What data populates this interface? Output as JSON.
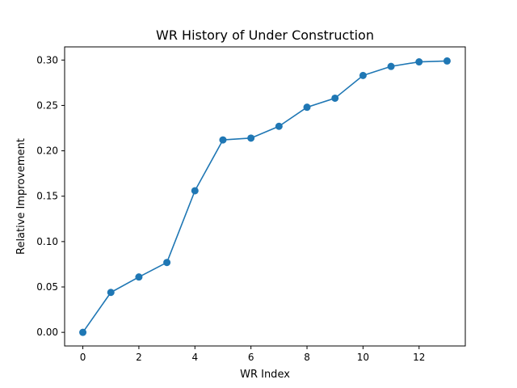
{
  "chart_data": {
    "type": "line",
    "title": "WR History of Under Construction",
    "xlabel": "WR Index",
    "ylabel": "Relative Improvement",
    "x": [
      0,
      1,
      2,
      3,
      4,
      5,
      6,
      7,
      8,
      9,
      10,
      11,
      12,
      13
    ],
    "series": [
      {
        "values": [
          0.0,
          0.044,
          0.061,
          0.077,
          0.156,
          0.212,
          0.214,
          0.227,
          0.248,
          0.258,
          0.283,
          0.293,
          0.298,
          0.299
        ],
        "color": "#1f77b4",
        "marker": "circle"
      }
    ],
    "xlim": [
      -0.65,
      13.65
    ],
    "ylim": [
      -0.015,
      0.3145
    ],
    "xticks": [
      0,
      2,
      4,
      6,
      8,
      10,
      12
    ],
    "yticks": [
      0.0,
      0.05,
      0.1,
      0.15,
      0.2,
      0.25,
      0.3
    ],
    "ytick_labels": [
      "0.00",
      "0.05",
      "0.10",
      "0.15",
      "0.20",
      "0.25",
      "0.30"
    ],
    "grid": false,
    "legend": "none"
  }
}
